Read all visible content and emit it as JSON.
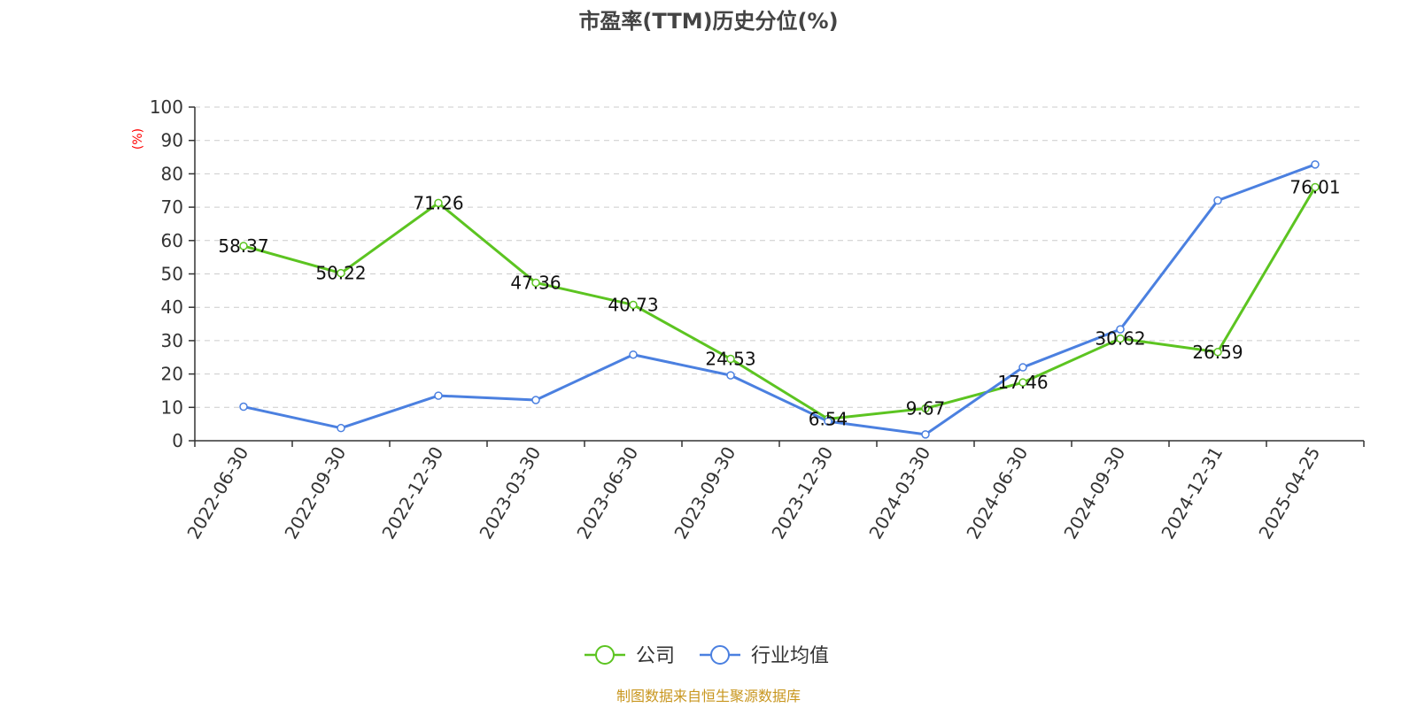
{
  "chart_data": {
    "type": "line",
    "title": "市盈率(TTM)历史分位(%)",
    "ylabel": "(%)",
    "xlabel": "",
    "ylim": [
      0,
      100
    ],
    "yticks": [
      0,
      10,
      20,
      30,
      40,
      50,
      60,
      70,
      80,
      90,
      100
    ],
    "grid": true,
    "legend_position": "bottom-center",
    "categories": [
      "2022-06-30",
      "2022-09-30",
      "2022-12-30",
      "2023-03-30",
      "2023-06-30",
      "2023-09-30",
      "2023-12-30",
      "2024-03-30",
      "2024-06-30",
      "2024-09-30",
      "2024-12-31",
      "2025-04-25"
    ],
    "series": [
      {
        "name": "公司",
        "color": "#5cc421",
        "values": [
          58.37,
          50.22,
          71.26,
          47.36,
          40.73,
          24.53,
          6.54,
          9.67,
          17.46,
          30.62,
          26.59,
          76.01
        ],
        "labels": [
          "58.37",
          "50.22",
          "71.26",
          "47.36",
          "40.73",
          "24.53",
          "6.54",
          "9.67",
          "17.46",
          "30.62",
          "26.59",
          "76.01"
        ]
      },
      {
        "name": "行业均值",
        "color": "#4b80e0",
        "values": [
          10.2,
          3.8,
          13.5,
          12.2,
          25.8,
          19.6,
          5.8,
          1.9,
          22.0,
          33.4,
          72.0,
          82.8
        ]
      }
    ]
  },
  "footer": {
    "source": "制图数据来自恒生聚源数据库"
  }
}
